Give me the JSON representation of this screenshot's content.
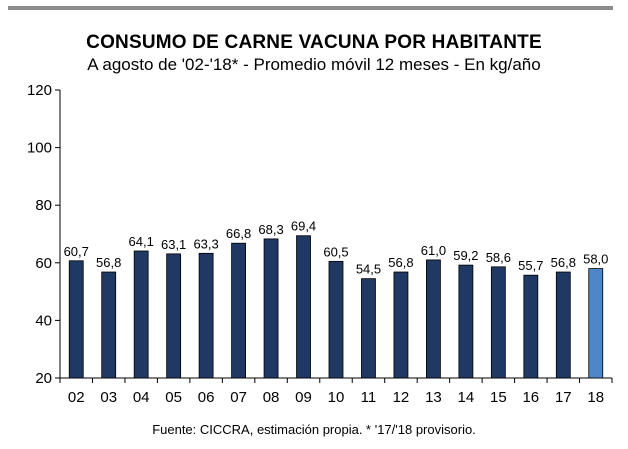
{
  "title": "CONSUMO DE CARNE VACUNA POR HABITANTE",
  "subtitle": "A agosto de '02-'18* - Promedio móvil 12 meses -  En kg/año",
  "source": "Fuente: CICCRA, estimación propia. * '17/'18 provisorio.",
  "chart_data": {
    "type": "bar",
    "categories": [
      "02",
      "03",
      "04",
      "05",
      "06",
      "07",
      "08",
      "09",
      "10",
      "11",
      "12",
      "13",
      "14",
      "15",
      "16",
      "17",
      "18"
    ],
    "values": [
      60.7,
      56.8,
      64.1,
      63.1,
      63.3,
      66.8,
      68.3,
      69.4,
      60.5,
      54.5,
      56.8,
      61.0,
      59.2,
      58.6,
      55.7,
      56.8,
      58.0
    ],
    "data_labels": [
      "60,7",
      "56,8",
      "64,1",
      "63,1",
      "63,3",
      "66,8",
      "68,3",
      "69,4",
      "60,5",
      "54,5",
      "56,8",
      "61,0",
      "59,2",
      "58,6",
      "55,7",
      "56,8",
      "58,0"
    ],
    "ylim": [
      20,
      120
    ],
    "yticks": [
      20,
      40,
      60,
      80,
      100,
      120
    ],
    "grid": false,
    "legend": "none",
    "colors": {
      "bar": "#1f3864",
      "highlight_bar": "#4f86c6",
      "highlight_category": "18"
    }
  }
}
